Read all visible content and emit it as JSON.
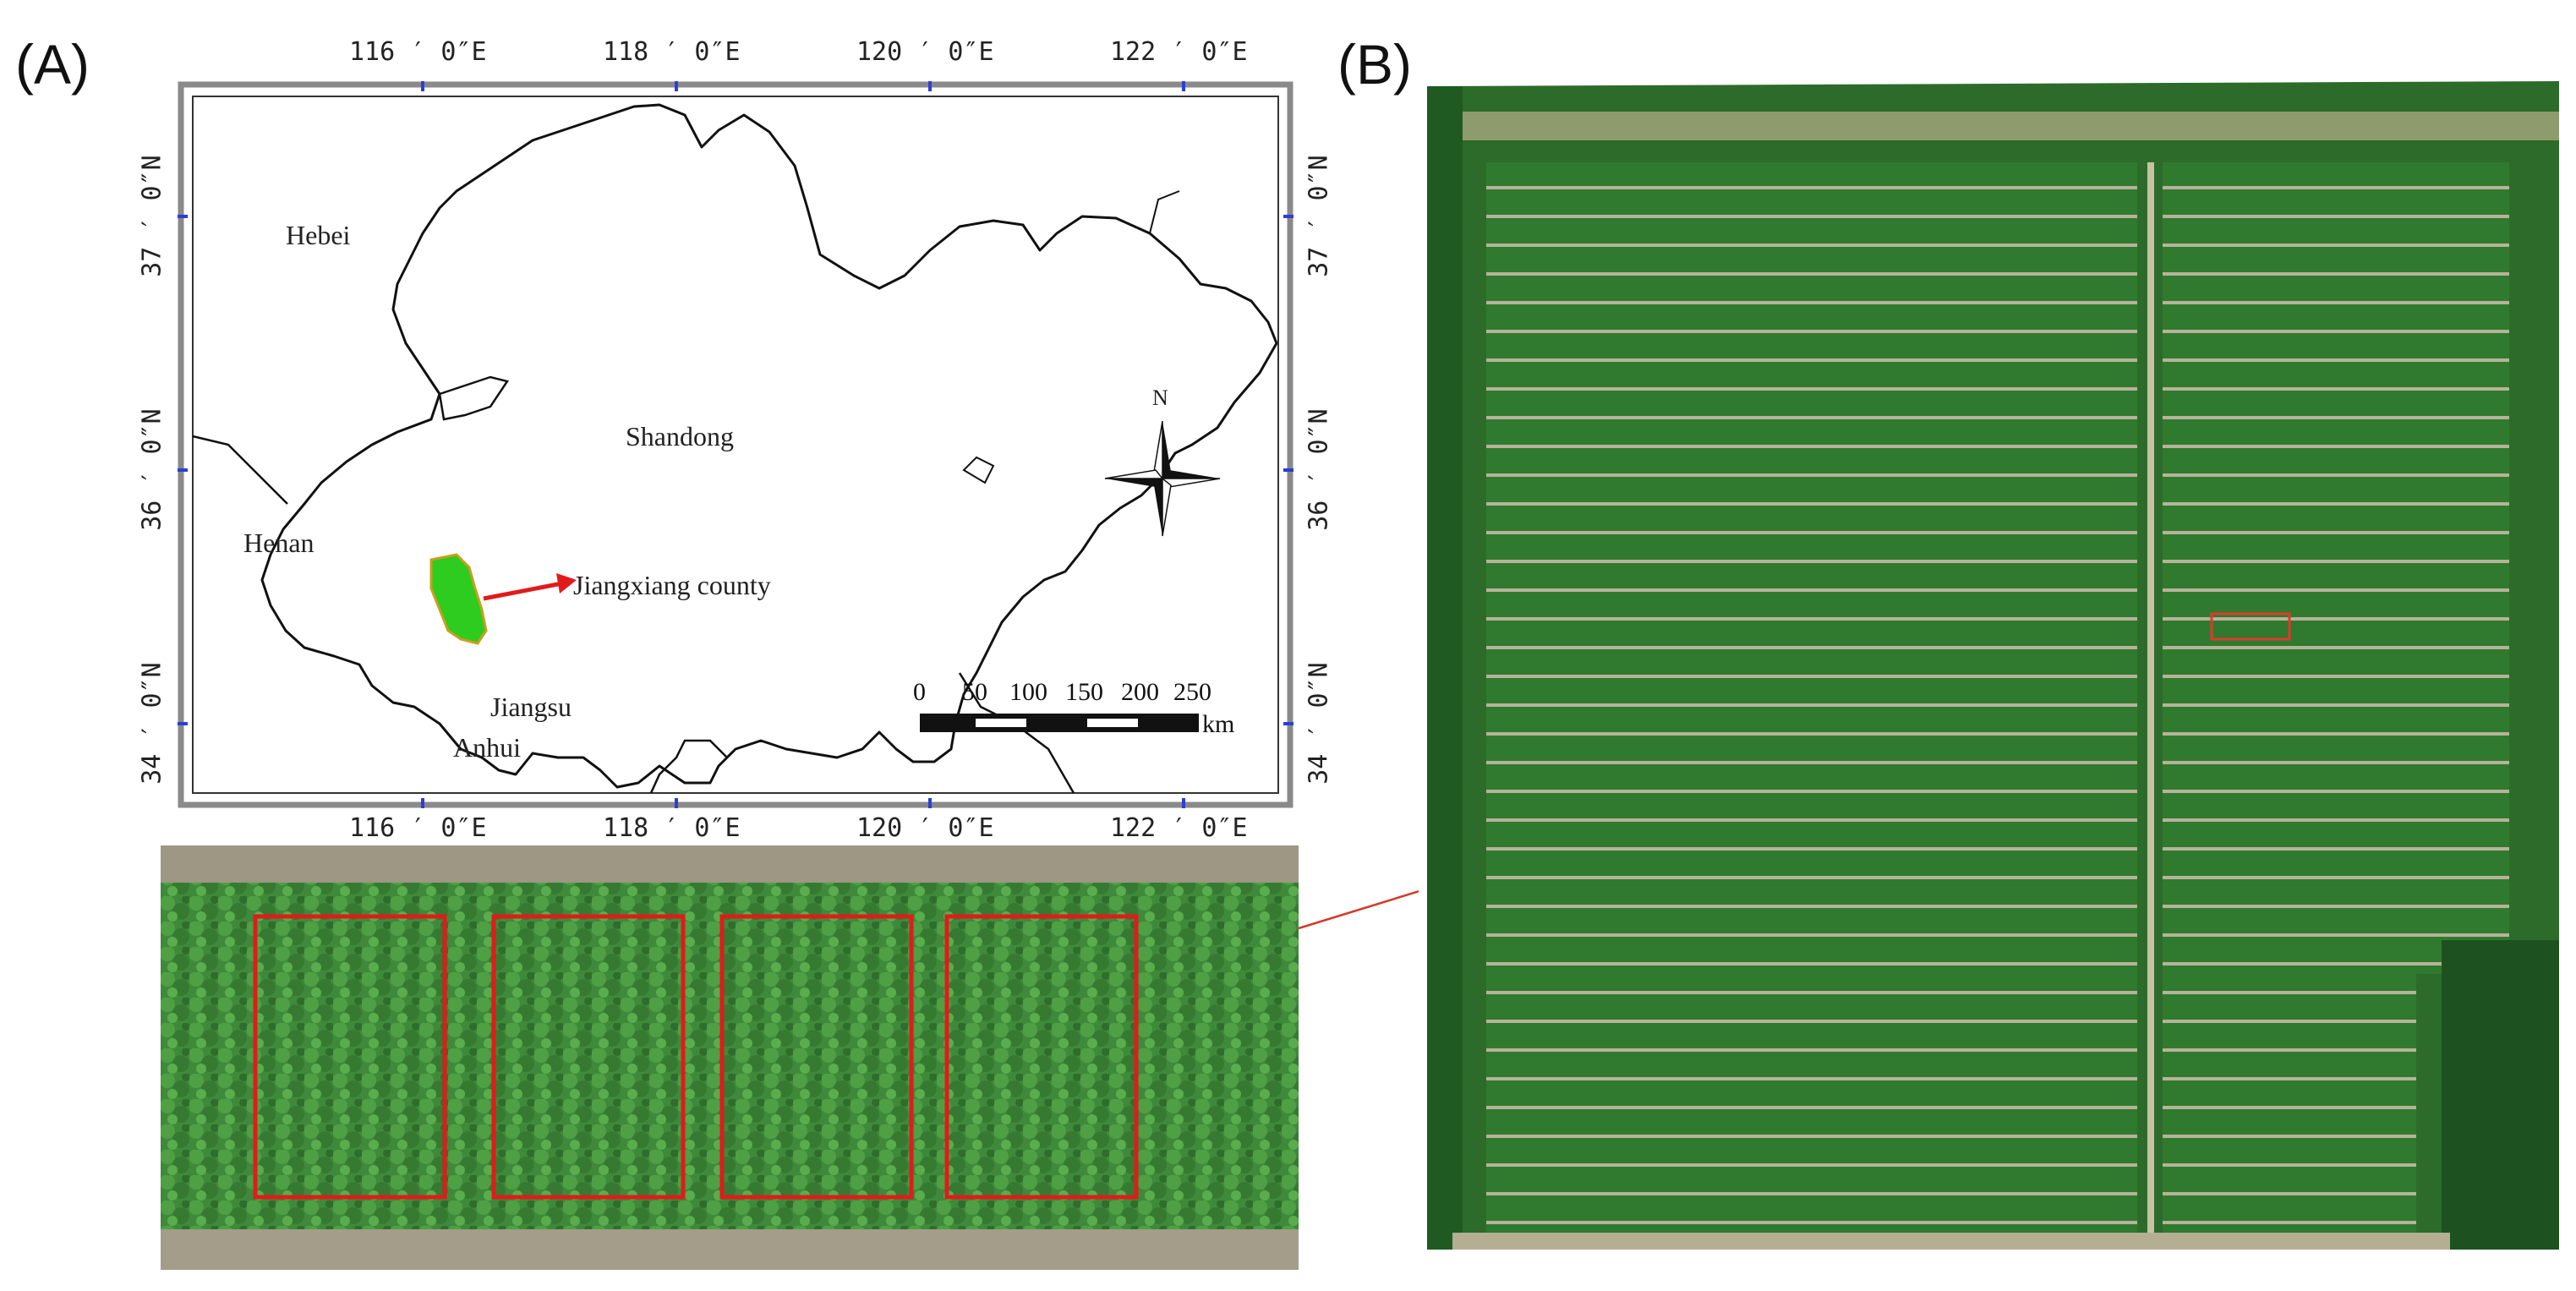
{
  "panels": {
    "a_label": "(A)",
    "b_label": "(B)"
  },
  "map": {
    "top_ticks": [
      "116 ′ 0″E",
      "118 ′ 0″E",
      "120 ′ 0″E",
      "122 ′ 0″E"
    ],
    "bottom_ticks": [
      "116 ′ 0″E",
      "118 ′ 0″E",
      "120 ′ 0″E",
      "122 ′ 0″E"
    ],
    "left_ticks": [
      "37 ′ 0″N",
      "36 ′ 0″N",
      "34 ′ 0″N"
    ],
    "right_ticks": [
      "37 ′ 0″N",
      "36 ′ 0″N",
      "34 ′ 0″N"
    ],
    "provinces": {
      "hebei": "Hebei",
      "shandong": "Shandong",
      "henan": "Henan",
      "jiangsu": "Jiangsu",
      "anhui": "Anhui"
    },
    "study_area_label": "Jiangxiang county",
    "north_label": "N",
    "scale": {
      "ticks": [
        "0",
        "50",
        "100",
        "150",
        "200",
        "250"
      ],
      "unit": "km"
    },
    "colors": {
      "study_area": "#2ecc1f",
      "arrow": "#e01b1b"
    }
  },
  "inset": {
    "plot_count": 4,
    "plot_color": "#e01b1b"
  },
  "aerial": {
    "highlight_color": "#e03a2a"
  }
}
